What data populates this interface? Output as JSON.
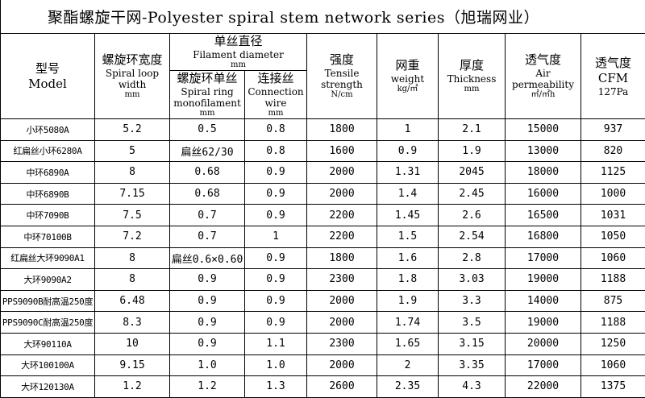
{
  "title": "聚酯螺旋干网-Polyester spiral stem network series（旭瑞网业）",
  "header": {
    "columns": [
      {
        "lines": [
          "型号",
          "Model"
        ]
      },
      {
        "lines": [
          "螺旋环宽度",
          "Spiral loop",
          "width",
          "mm"
        ]
      },
      {
        "lines": [
          "螺旋环单丝",
          "Spiral ring",
          "monofilament",
          "mm"
        ]
      },
      {
        "lines": [
          "连接丝",
          "Connection",
          "wire",
          "mm"
        ]
      },
      {
        "lines": [
          "强度",
          "Tensile",
          "strength",
          "N/cm"
        ]
      },
      {
        "lines": [
          "网重",
          "weight",
          "kg/㎡"
        ]
      },
      {
        "lines": [
          "厚度",
          "Thickness",
          "mm"
        ]
      },
      {
        "lines": [
          "透气度",
          "Air",
          "permeability",
          "㎡/㎡h"
        ]
      },
      {
        "lines": [
          "透气度",
          "CFM",
          "127Pa"
        ]
      }
    ],
    "group": {
      "lines": [
        "单丝直径",
        "Filament diameter",
        "mm"
      ]
    }
  },
  "table": {
    "rows": [
      [
        "小环5080A",
        "5.2",
        "0.5",
        "0.8",
        "1800",
        "1",
        "2.1",
        "15000",
        "937"
      ],
      [
        "红扁丝小环6280A",
        "5",
        "扁丝62/30",
        "0.8",
        "1600",
        "0.9",
        "1.9",
        "13000",
        "820"
      ],
      [
        "中环6890A",
        "8",
        "0.68",
        "0.9",
        "2000",
        "1.31",
        "2045",
        "18000",
        "1125"
      ],
      [
        "中环6890B",
        "7.15",
        "0.68",
        "0.9",
        "2000",
        "1.4",
        "2.45",
        "16000",
        "1000"
      ],
      [
        "中环7090B",
        "7.5",
        "0.7",
        "0.9",
        "2200",
        "1.45",
        "2.6",
        "16500",
        "1031"
      ],
      [
        "中环70100B",
        "7.2",
        "0.7",
        "1",
        "2200",
        "1.5",
        "2.54",
        "16800",
        "1050"
      ],
      [
        "红扁丝大环9090A1",
        "8",
        "扁丝0.6×0.60",
        "0.9",
        "1800",
        "1.6",
        "2.8",
        "17000",
        "1060"
      ],
      [
        "大环9090A2",
        "8",
        "0.9",
        "0.9",
        "2300",
        "1.8",
        "3.03",
        "19000",
        "1188"
      ],
      [
        "PPS9090B耐高温250度",
        "6.48",
        "0.9",
        "0.9",
        "2000",
        "1.9",
        "3.3",
        "14000",
        "875"
      ],
      [
        "PPS9090C耐高温250度",
        "8.3",
        "0.9",
        "0.9",
        "2000",
        "1.74",
        "3.5",
        "19000",
        "1188"
      ],
      [
        "大环90110A",
        "10",
        "0.9",
        "1.1",
        "2300",
        "1.65",
        "3.15",
        "20000",
        "1250"
      ],
      [
        "大环100100A",
        "9.15",
        "1.0",
        "1.0",
        "2000",
        "2",
        "3.35",
        "17000",
        "1060"
      ],
      [
        "大环120130A",
        "1.2",
        "1.2",
        "1.3",
        "2600",
        "2.35",
        "4.3",
        "22000",
        "1375"
      ]
    ]
  }
}
